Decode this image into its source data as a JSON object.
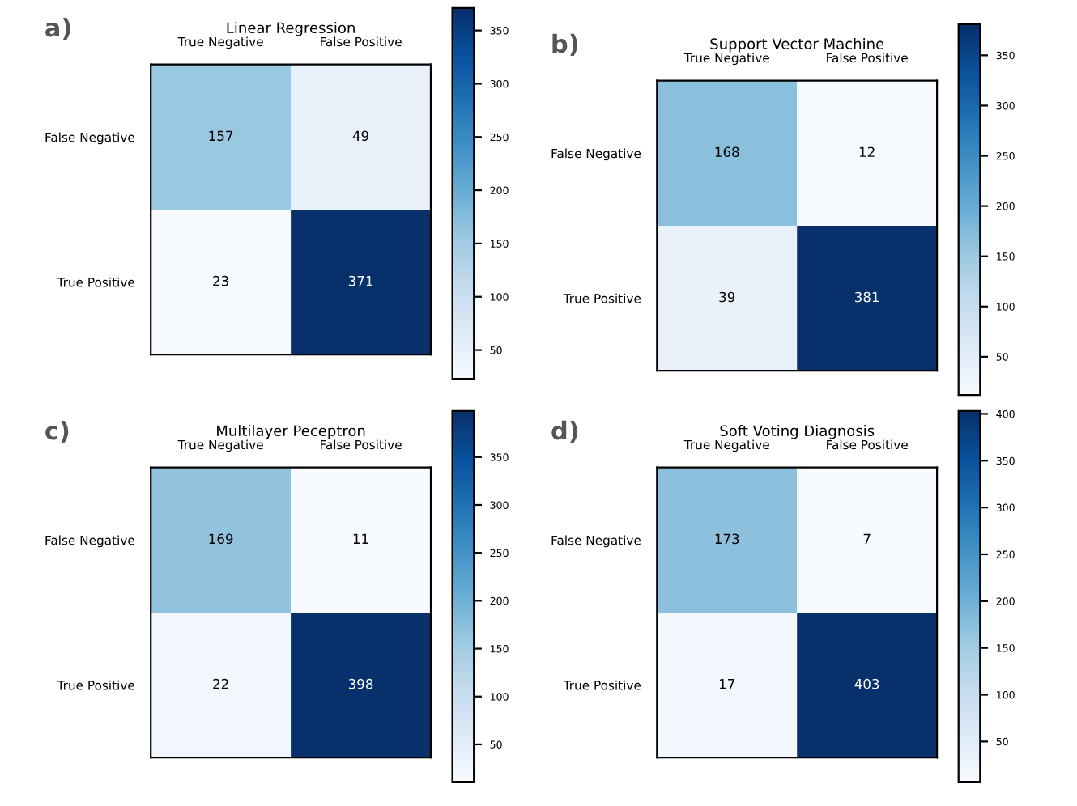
{
  "chart_data": [
    {
      "type": "heatmap",
      "title": "Linear Regression",
      "annotations": [
        "a)"
      ],
      "categories": [
        "True Negative",
        "False Positive"
      ],
      "y_categories": [
        "False Negative",
        "True Positive"
      ],
      "cells": [
        [
          157,
          49
        ],
        [
          23,
          371
        ]
      ],
      "clim": [
        23,
        371
      ],
      "cticks": [
        50,
        100,
        150,
        200,
        250,
        300,
        350
      ],
      "data_labels": true
    },
    {
      "type": "heatmap",
      "title": "Support Vector Machine",
      "annotations": [
        "b)"
      ],
      "categories": [
        "True Negative",
        "False Positive"
      ],
      "y_categories": [
        "False Negative",
        "True Positive"
      ],
      "cells": [
        [
          168,
          12
        ],
        [
          39,
          381
        ]
      ],
      "clim": [
        12,
        381
      ],
      "cticks": [
        50,
        100,
        150,
        200,
        250,
        300,
        350
      ],
      "data_labels": true
    },
    {
      "type": "heatmap",
      "title": "Multilayer Peceptron",
      "annotations": [
        "c)"
      ],
      "categories": [
        "True Negative",
        "False Positive"
      ],
      "y_categories": [
        "False Negative",
        "True Positive"
      ],
      "cells": [
        [
          169,
          11
        ],
        [
          22,
          398
        ]
      ],
      "clim": [
        11,
        398
      ],
      "cticks": [
        50,
        100,
        150,
        200,
        250,
        300,
        350
      ],
      "data_labels": true
    },
    {
      "type": "heatmap",
      "title": "Soft Voting Diagnosis",
      "annotations": [
        "d)"
      ],
      "categories": [
        "True Negative",
        "False Positive"
      ],
      "y_categories": [
        "False Negative",
        "True Positive"
      ],
      "cells": [
        [
          173,
          7
        ],
        [
          17,
          403
        ]
      ],
      "clim": [
        7,
        403
      ],
      "cticks": [
        50,
        100,
        150,
        200,
        250,
        300,
        350,
        400
      ],
      "data_labels": true
    }
  ]
}
